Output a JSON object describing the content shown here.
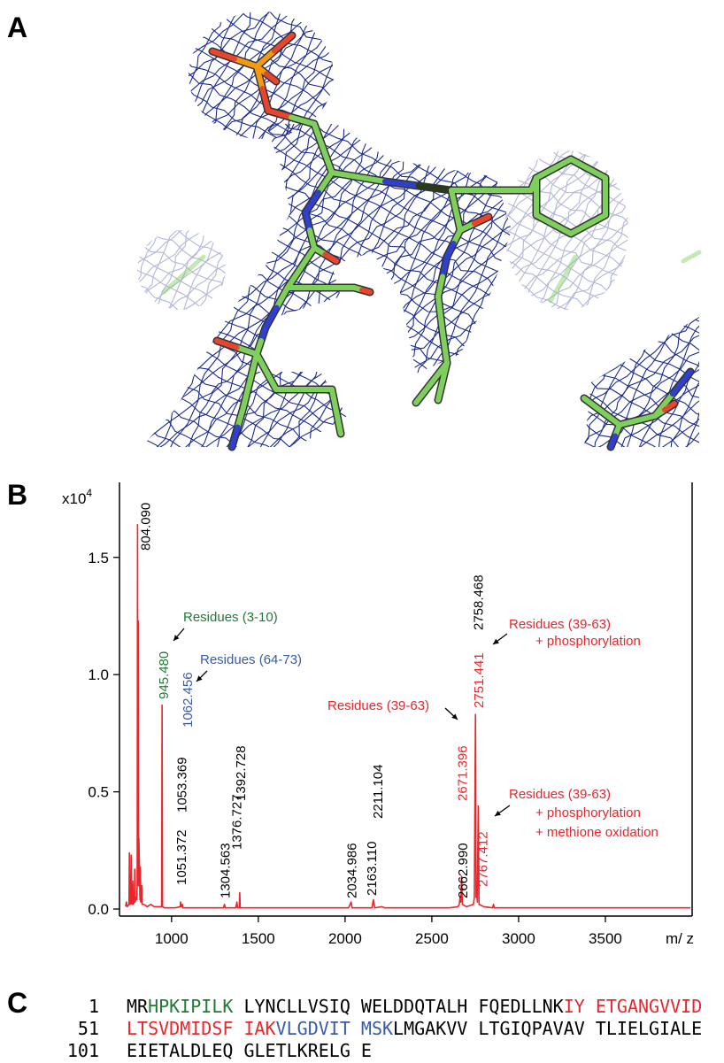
{
  "panels": [
    "A",
    "B",
    "C"
  ],
  "chart_data": {
    "type": "line",
    "y_scale_label": "x10",
    "y_scale_exponent": "4",
    "x_label": "m/ z",
    "xlim": [
      700,
      4000
    ],
    "ylim": [
      -0.03,
      1.82
    ],
    "xticks": [
      1000,
      1500,
      2000,
      2500,
      3000,
      3500
    ],
    "yticks": [
      {
        "value": 0,
        "label": "0.0"
      },
      0.5,
      {
        "value": 1,
        "label": "1.0"
      },
      1.5
    ],
    "series": [
      {
        "color": "#e8262b",
        "x": [
          735,
          740,
          745,
          755,
          757,
          759,
          765,
          767,
          769,
          775,
          777,
          779,
          786,
          788,
          790,
          795,
          800,
          802,
          804.09,
          806,
          808,
          810,
          812,
          818,
          820,
          822,
          826,
          828,
          830,
          840,
          860,
          880,
          900,
          930,
          943,
          945.48,
          948,
          960,
          990,
          1020,
          1050,
          1051.37,
          1053.37,
          1056,
          1062.46,
          1065,
          1100,
          1150,
          1200,
          1250,
          1300,
          1304.56,
          1310,
          1350,
          1370,
          1376.73,
          1380,
          1390,
          1392.73,
          1396,
          1450,
          1550,
          1650,
          1750,
          1850,
          1950,
          2020,
          2034.99,
          2040,
          2100,
          2155,
          2163.11,
          2170,
          2211.1,
          2230,
          2300,
          2400,
          2500,
          2600,
          2650,
          2658,
          2662.99,
          2667,
          2671.4,
          2676,
          2700,
          2740,
          2745,
          2751.44,
          2755,
          2758.47,
          2762,
          2767.41,
          2772,
          2800,
          2850,
          2855,
          2860,
          2900,
          3000,
          3100,
          3200,
          3300,
          3400,
          3500,
          3600,
          3700,
          3800,
          3900,
          3990
        ],
        "values": [
          0.01,
          0.03,
          0.01,
          0.02,
          0.24,
          0.02,
          0.02,
          0.23,
          0.03,
          0.02,
          0.12,
          0.02,
          0.03,
          0.17,
          0.03,
          0.05,
          0.04,
          0.1,
          1.64,
          0.2,
          1.23,
          0.1,
          0.3,
          0.04,
          0.18,
          0.03,
          0.04,
          0.1,
          0.02,
          0.02,
          0.01,
          0.02,
          0.01,
          0.01,
          0.01,
          0.87,
          0.01,
          0.005,
          0.005,
          0.005,
          0.01,
          0.03,
          0.02,
          0.01,
          0.02,
          0.005,
          0.005,
          0.005,
          0.005,
          0.005,
          0.005,
          0.02,
          0.005,
          0.005,
          0.005,
          0.03,
          0.005,
          0.005,
          0.07,
          0.005,
          0.005,
          0.005,
          0.005,
          0.005,
          0.005,
          0.005,
          0.005,
          0.03,
          0.005,
          0.005,
          0.005,
          0.04,
          0.005,
          0.01,
          0.005,
          0.005,
          0.005,
          0.005,
          0.005,
          0.01,
          0.02,
          0.05,
          0.03,
          0.14,
          0.02,
          0.01,
          0.02,
          0.05,
          0.83,
          0.05,
          0.1,
          0.03,
          0.44,
          0.02,
          0.01,
          0.005,
          0.02,
          0.005,
          0.005,
          0.005,
          0.005,
          0.005,
          0.005,
          0.005,
          0.005,
          0.005,
          0.005,
          0.005,
          0.005,
          0.005
        ]
      }
    ],
    "peak_labels": [
      {
        "x": 804.09,
        "label": "804.090",
        "color": "#000000"
      },
      {
        "x": 945.48,
        "label": "945.480",
        "color": "#1f7a34"
      },
      {
        "x": 1051.372,
        "label": "1051.372",
        "color": "#000000"
      },
      {
        "x": 1053.369,
        "label": "1053.369",
        "color": "#000000"
      },
      {
        "x": 1062.456,
        "label": "1062.456",
        "color": "#3a5aa8"
      },
      {
        "x": 1304.563,
        "label": "1304.563",
        "color": "#000000"
      },
      {
        "x": 1376.727,
        "label": "1376.727",
        "color": "#000000"
      },
      {
        "x": 1392.728,
        "label": "1392.728",
        "color": "#000000"
      },
      {
        "x": 2034.986,
        "label": "2034.986",
        "color": "#000000"
      },
      {
        "x": 2163.11,
        "label": "2163.110",
        "color": "#000000"
      },
      {
        "x": 2211.104,
        "label": "2211.104",
        "color": "#000000"
      },
      {
        "x": 2662.99,
        "label": "2662.990",
        "color": "#000000"
      },
      {
        "x": 2671.396,
        "label": "2671.396",
        "color": "#e8262b"
      },
      {
        "x": 2751.441,
        "label": "2751.441",
        "color": "#e8262b"
      },
      {
        "x": 2758.468,
        "label": "2758.468",
        "color": "#000000"
      },
      {
        "x": 2767.412,
        "label": "2767.412",
        "color": "#e8262b"
      }
    ],
    "annotations": [
      {
        "lines": [
          "Residues (3-10)"
        ],
        "color": "#1f7a34"
      },
      {
        "lines": [
          "Residues (64-73)"
        ],
        "color": "#3a5aa8"
      },
      {
        "lines": [
          "Residues (39-63)"
        ],
        "color": "#e8262b"
      },
      {
        "lines": [
          "Residues (39-63)",
          "+ phosphorylation"
        ],
        "color": "#e8262b"
      },
      {
        "lines": [
          "Residues (39-63)",
          "+ phosphorylation",
          "+ methione oxidation"
        ],
        "color": "#e8262b"
      }
    ]
  },
  "sequence": {
    "rows": [
      {
        "number": "1",
        "segments": [
          {
            "text": "MR",
            "color": "#000000"
          },
          {
            "text": "HPKIPILK",
            "color": "#1f7a34"
          },
          {
            "text": " LYNCLLVSIQ WELDDQTALH FQEDLLNK",
            "color": "#000000"
          },
          {
            "text": "IY ETGANGVVID",
            "color": "#e8262b"
          }
        ]
      },
      {
        "number": "51",
        "segments": [
          {
            "text": "LTSVDMIDSF IAK",
            "color": "#e8262b"
          },
          {
            "text": "VLGDVIT MSK",
            "color": "#3a5aa8"
          },
          {
            "text": "LMGAKVV LTGIQPAVAV TLIELGIALE",
            "color": "#000000"
          }
        ]
      },
      {
        "number": "101",
        "segments": [
          {
            "text": "EIETALDLEQ GLETLKRELG E",
            "color": "#000000"
          }
        ]
      }
    ]
  }
}
